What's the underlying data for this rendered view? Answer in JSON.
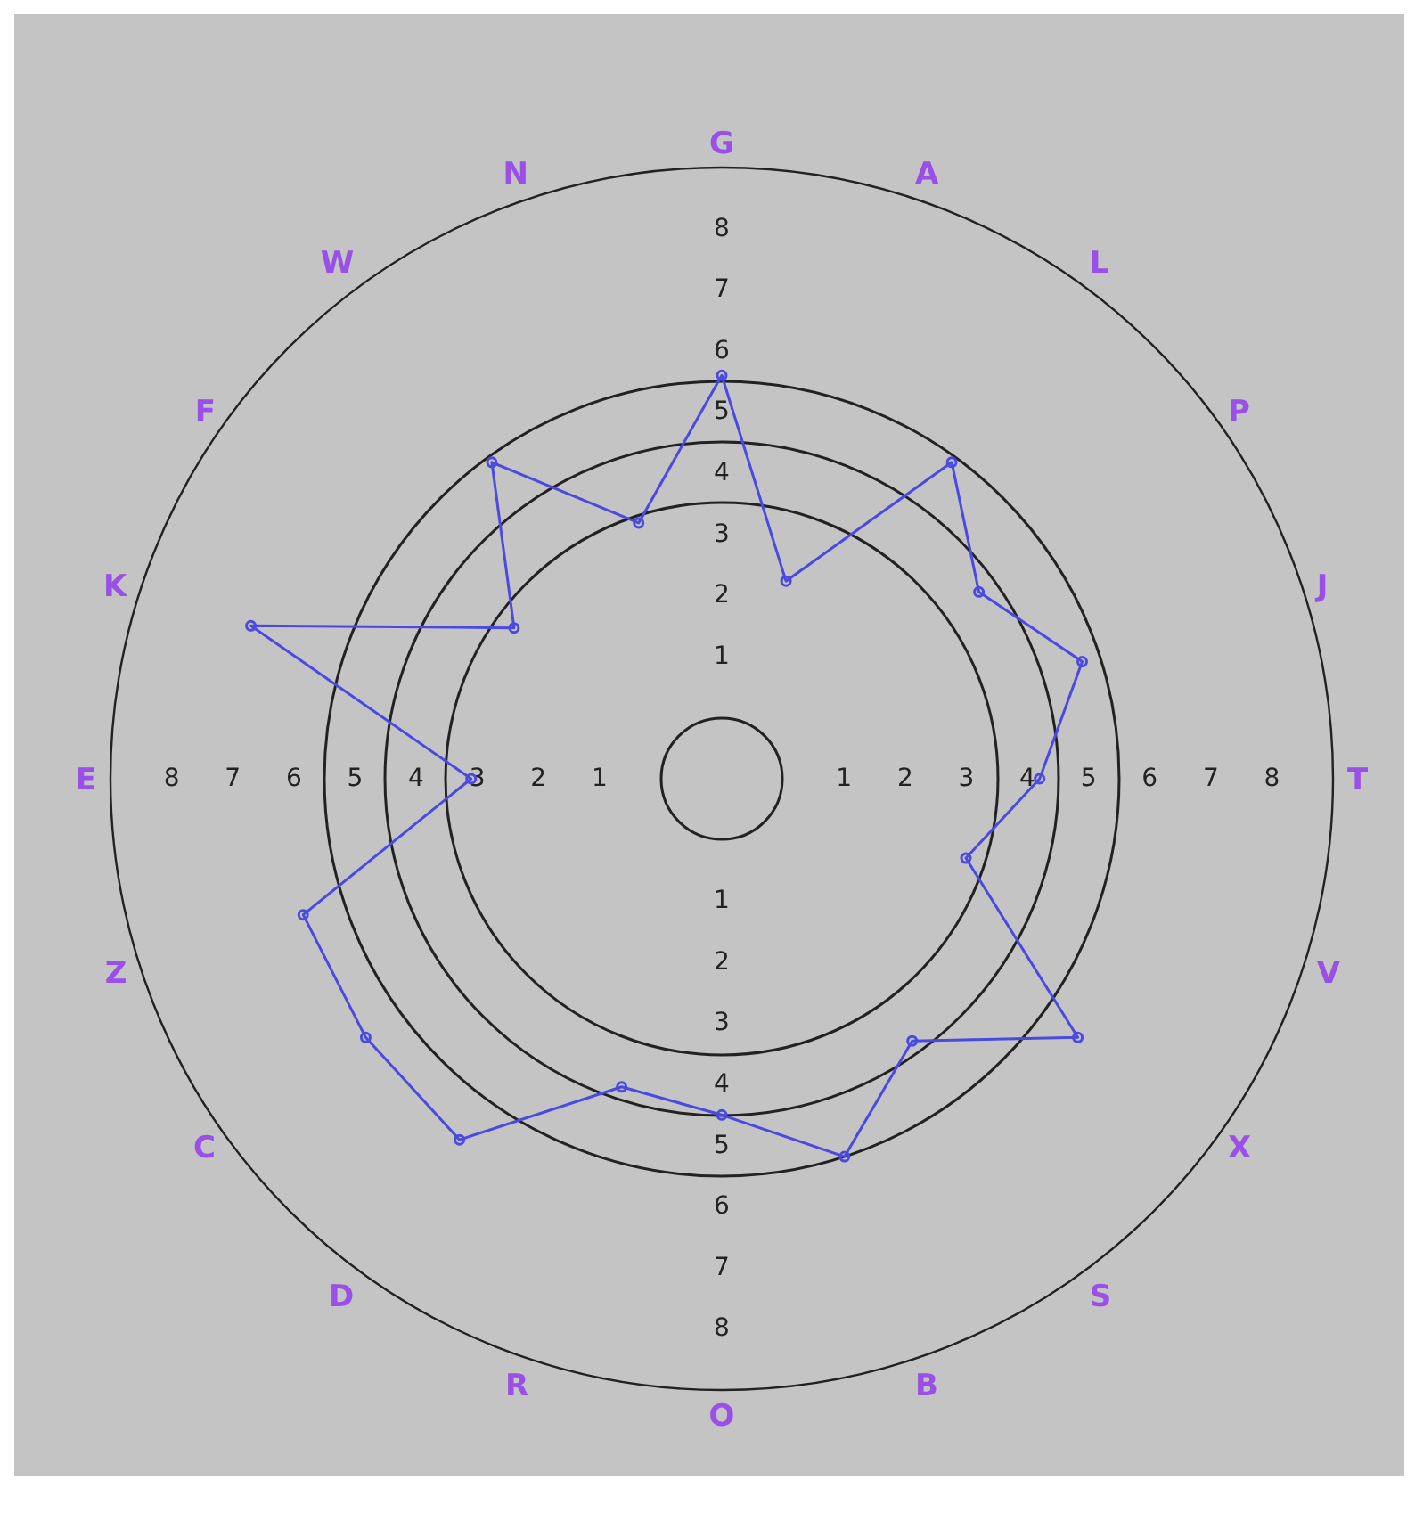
{
  "chart_data": {
    "type": "radar",
    "categories": [
      "G",
      "A",
      "L",
      "P",
      "J",
      "T",
      "V",
      "X",
      "S",
      "B",
      "O",
      "R",
      "D",
      "C",
      "Z",
      "E",
      "K",
      "F",
      "W",
      "N"
    ],
    "series": [
      {
        "color": "#4a4ae0",
        "values": [
          5.6,
          2.4,
          5.4,
          4.2,
          5.2,
          4.2,
          3.2,
          6.2,
          4.3,
          5.5,
          4.5,
          4.3,
          6.3,
          6.2,
          6.2,
          3.1,
          7.1,
          3.2,
          5.4,
          3.4
        ]
      }
    ],
    "ylim": [
      -1,
      9
    ],
    "yticks": [
      1,
      2,
      3,
      4,
      5,
      6,
      7,
      8
    ],
    "annotations": [
      "1",
      "2",
      "3",
      "4",
      "5",
      "6",
      "7",
      "8",
      "1",
      "2",
      "3",
      "4",
      "5",
      "6",
      "7",
      "8",
      "1",
      "2",
      "3",
      "4",
      "5",
      "6",
      "7",
      "8"
    ],
    "marker": "circle",
    "grid": false
  }
}
